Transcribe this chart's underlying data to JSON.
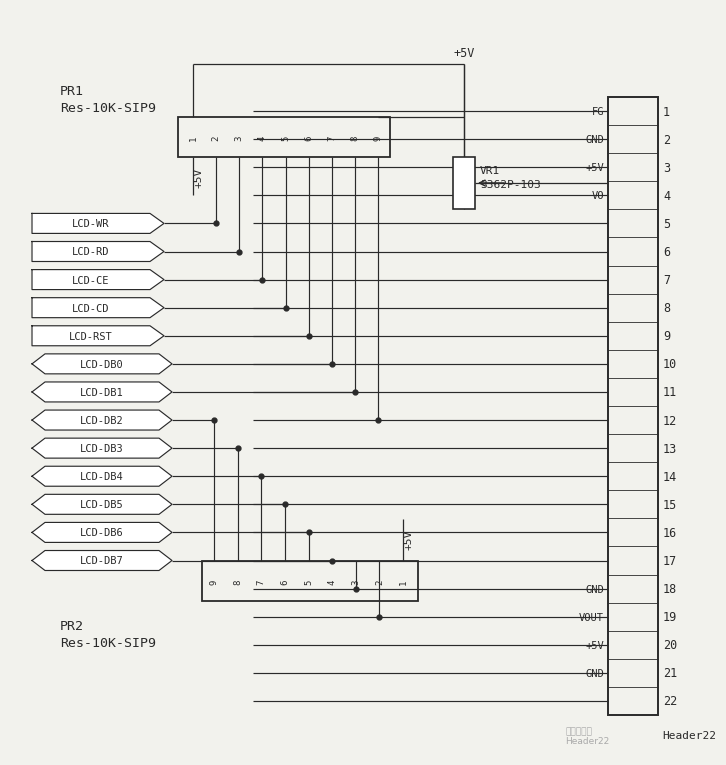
{
  "bg_color": "#f2f2ed",
  "line_color": "#2a2a2a",
  "header22_signal_labels": [
    "FG",
    "GND",
    "+5V",
    "VO",
    "",
    "",
    "",
    "",
    "",
    "",
    "",
    "",
    "",
    "",
    "",
    "",
    "",
    "GND",
    "VOUT",
    "+5V",
    "GND",
    ""
  ],
  "header22_pin_labels": [
    "1",
    "2",
    "3",
    "4",
    "5",
    "6",
    "7",
    "8",
    "9",
    "10",
    "11",
    "12",
    "13",
    "14",
    "15",
    "16",
    "17",
    "18",
    "19",
    "20",
    "21",
    "22"
  ],
  "lcd_rect_signals": [
    "LCD-WR",
    "LCD-RD",
    "LCD-CE",
    "LCD-CD",
    "LCD-RST"
  ],
  "lcd_diamond_signals": [
    "LCD-DB0",
    "LCD-DB1",
    "LCD-DB2",
    "LCD-DB3",
    "LCD-DB4",
    "LCD-DB5",
    "LCD-DB6",
    "LCD-DB7"
  ],
  "pr1_line1": "PR1",
  "pr1_line2": "Res-10K-SIP9",
  "pr2_line1": "PR2",
  "pr2_line2": "Res-10K-SIP9",
  "vr1_line1": "VR1",
  "vr1_line2": "3362P-103",
  "plus5v": "+5V",
  "header_label": "Header22"
}
